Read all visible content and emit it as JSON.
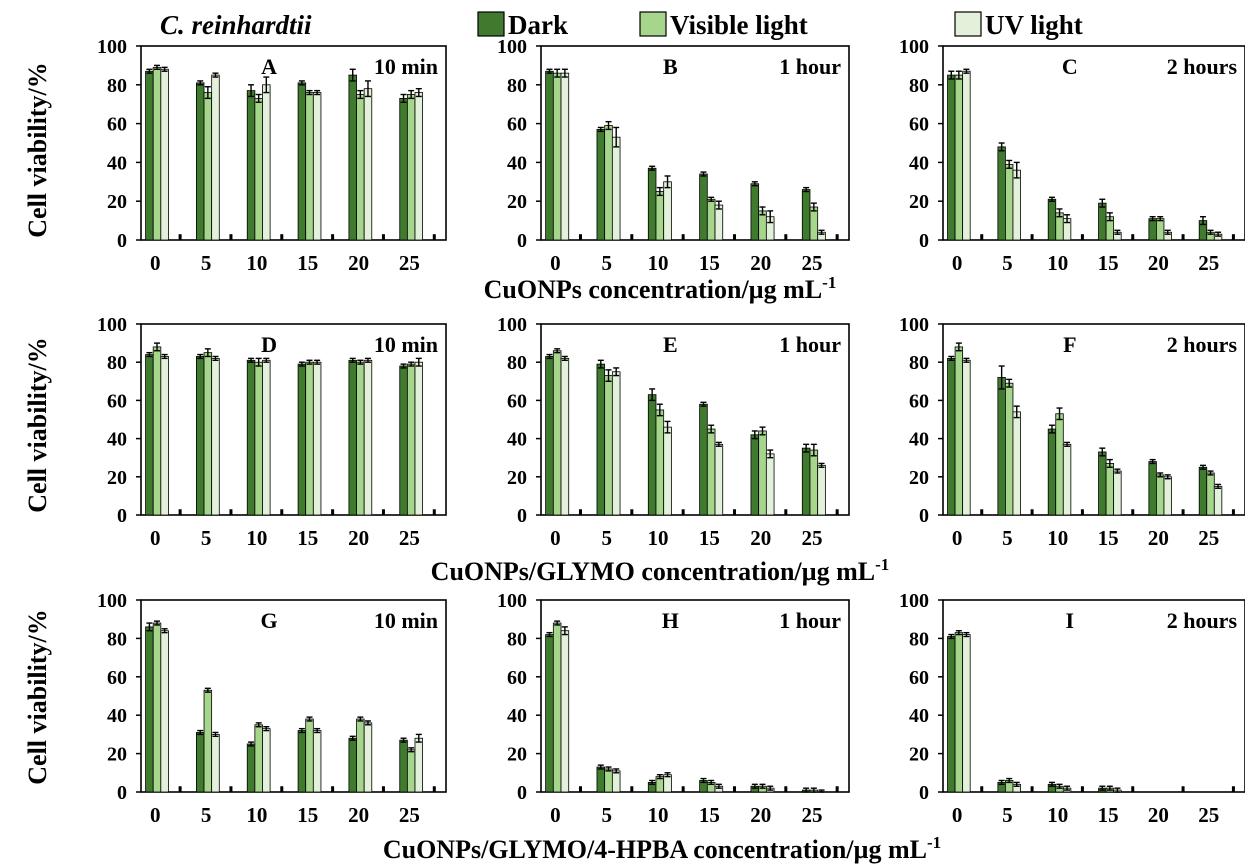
{
  "figure": {
    "species": "C. reinhardtii",
    "legend": [
      {
        "key": "dark",
        "label": "Dark",
        "color": "#3f7a2f"
      },
      {
        "key": "visible",
        "label": "Visible light",
        "color": "#a6d58c"
      },
      {
        "key": "uv",
        "label": "UV light",
        "color": "#e3f1da"
      }
    ],
    "ylabel": "Cell viability/%",
    "row_xlabels": [
      {
        "text": "CuONPs concentration/µg mL",
        "sup": "-1"
      },
      {
        "text": "CuONPs/GLYMO concentration/µg mL",
        "sup": "-1"
      },
      {
        "text": "CuONPs/GLYMO/4-HPBA concentration/µg mL",
        "sup": "-1"
      }
    ]
  },
  "chart_data": [
    {
      "panel": "A",
      "time": "10 min",
      "type": "bar",
      "categories": [
        "0",
        "5",
        "10",
        "15",
        "20",
        "25"
      ],
      "ylim": [
        0,
        100
      ],
      "yticks": [
        0,
        20,
        40,
        60,
        80,
        100
      ],
      "series": [
        {
          "name": "Dark",
          "values": [
            87,
            81,
            77,
            81,
            85,
            73
          ],
          "errors": [
            1,
            1,
            3,
            1,
            3,
            2
          ]
        },
        {
          "name": "Visible light",
          "values": [
            89,
            76,
            73,
            76,
            75,
            75
          ],
          "errors": [
            1,
            3,
            2,
            1,
            2,
            2
          ]
        },
        {
          "name": "UV light",
          "values": [
            88,
            85,
            80,
            76,
            78,
            76
          ],
          "errors": [
            1,
            1,
            4,
            1,
            4,
            2
          ]
        }
      ],
      "control_marks": [
        3,
        3,
        3,
        3,
        3,
        3
      ]
    },
    {
      "panel": "B",
      "time": "1 hour",
      "type": "bar",
      "categories": [
        "0",
        "5",
        "10",
        "15",
        "20",
        "25"
      ],
      "ylim": [
        0,
        100
      ],
      "yticks": [
        0,
        20,
        40,
        60,
        80,
        100
      ],
      "series": [
        {
          "name": "Dark",
          "values": [
            87,
            57,
            37,
            34,
            29,
            26
          ],
          "errors": [
            1,
            1,
            1,
            1,
            1,
            1
          ]
        },
        {
          "name": "Visible light",
          "values": [
            86,
            59,
            25,
            21,
            15,
            17
          ],
          "errors": [
            2,
            2,
            2,
            1,
            2,
            2
          ]
        },
        {
          "name": "UV light",
          "values": [
            86,
            53,
            30,
            18,
            12,
            4
          ],
          "errors": [
            2,
            5,
            3,
            2,
            3,
            1
          ]
        }
      ],
      "control_marks": [
        3,
        3,
        3,
        3,
        3,
        3
      ]
    },
    {
      "panel": "C",
      "time": "2 hours",
      "type": "bar",
      "categories": [
        "0",
        "5",
        "10",
        "15",
        "20",
        "25"
      ],
      "ylim": [
        0,
        100
      ],
      "yticks": [
        0,
        20,
        40,
        60,
        80,
        100
      ],
      "series": [
        {
          "name": "Dark",
          "values": [
            85,
            48,
            21,
            19,
            11,
            10
          ],
          "errors": [
            2,
            2,
            1,
            2,
            1,
            2
          ]
        },
        {
          "name": "Visible light",
          "values": [
            85,
            39,
            14,
            12,
            11,
            4
          ],
          "errors": [
            2,
            2,
            2,
            2,
            1,
            1
          ]
        },
        {
          "name": "UV light",
          "values": [
            87,
            36,
            11,
            4,
            4,
            3
          ],
          "errors": [
            1,
            4,
            2,
            1,
            1,
            1
          ]
        }
      ],
      "control_marks": [
        3,
        3,
        3,
        3,
        3,
        3
      ]
    },
    {
      "panel": "D",
      "time": "10 min",
      "type": "bar",
      "categories": [
        "0",
        "5",
        "10",
        "15",
        "20",
        "25"
      ],
      "ylim": [
        0,
        100
      ],
      "yticks": [
        0,
        20,
        40,
        60,
        80,
        100
      ],
      "series": [
        {
          "name": "Dark",
          "values": [
            84,
            83,
            81,
            79,
            81,
            78
          ],
          "errors": [
            1,
            1,
            1,
            1,
            1,
            1
          ]
        },
        {
          "name": "Visible light",
          "values": [
            88,
            85,
            80,
            80,
            80,
            79
          ],
          "errors": [
            2,
            2,
            2,
            1,
            1,
            1
          ]
        },
        {
          "name": "UV light",
          "values": [
            83,
            82,
            81,
            80,
            81,
            80
          ],
          "errors": [
            1,
            1,
            1,
            1,
            1,
            2
          ]
        }
      ],
      "control_marks": [
        3,
        3,
        3,
        3,
        3,
        3
      ]
    },
    {
      "panel": "E",
      "time": "1 hour",
      "type": "bar",
      "categories": [
        "0",
        "5",
        "10",
        "15",
        "20",
        "25"
      ],
      "ylim": [
        0,
        100
      ],
      "yticks": [
        0,
        20,
        40,
        60,
        80,
        100
      ],
      "series": [
        {
          "name": "Dark",
          "values": [
            83,
            79,
            63,
            58,
            42,
            35
          ],
          "errors": [
            1,
            2,
            3,
            1,
            2,
            2
          ]
        },
        {
          "name": "Visible light",
          "values": [
            86,
            73,
            55,
            45,
            44,
            34
          ],
          "errors": [
            1,
            3,
            3,
            2,
            2,
            3
          ]
        },
        {
          "name": "UV light",
          "values": [
            82,
            75,
            46,
            37,
            32,
            26
          ],
          "errors": [
            1,
            2,
            3,
            1,
            2,
            1
          ]
        }
      ],
      "control_marks": [
        3,
        3,
        3,
        3,
        3,
        3
      ]
    },
    {
      "panel": "F",
      "time": "2 hours",
      "type": "bar",
      "categories": [
        "0",
        "5",
        "10",
        "15",
        "20",
        "25"
      ],
      "ylim": [
        0,
        100
      ],
      "yticks": [
        0,
        20,
        40,
        60,
        80,
        100
      ],
      "series": [
        {
          "name": "Dark",
          "values": [
            82,
            72,
            45,
            33,
            28,
            25
          ],
          "errors": [
            1,
            6,
            2,
            2,
            1,
            1
          ]
        },
        {
          "name": "Visible light",
          "values": [
            88,
            69,
            53,
            27,
            21,
            22
          ],
          "errors": [
            2,
            2,
            3,
            2,
            1,
            1
          ]
        },
        {
          "name": "UV light",
          "values": [
            81,
            54,
            37,
            23,
            20,
            15
          ],
          "errors": [
            1,
            3,
            1,
            1,
            1,
            1
          ]
        }
      ],
      "control_marks": [
        3,
        3,
        3,
        3,
        3,
        3
      ]
    },
    {
      "panel": "G",
      "time": "10 min",
      "type": "bar",
      "categories": [
        "0",
        "5",
        "10",
        "15",
        "20",
        "25"
      ],
      "ylim": [
        0,
        100
      ],
      "yticks": [
        0,
        20,
        40,
        60,
        80,
        100
      ],
      "series": [
        {
          "name": "Dark",
          "values": [
            86,
            31,
            25,
            32,
            28,
            27
          ],
          "errors": [
            2,
            1,
            1,
            1,
            1,
            1
          ]
        },
        {
          "name": "Visible light",
          "values": [
            88,
            53,
            35,
            38,
            38,
            22
          ],
          "errors": [
            1,
            1,
            1,
            1,
            1,
            1
          ]
        },
        {
          "name": "UV light",
          "values": [
            84,
            30,
            33,
            32,
            36,
            28
          ],
          "errors": [
            1,
            1,
            1,
            1,
            1,
            2
          ]
        }
      ],
      "control_marks": [
        3,
        3,
        3,
        3,
        3,
        3
      ]
    },
    {
      "panel": "H",
      "time": "1 hour",
      "type": "bar",
      "categories": [
        "0",
        "5",
        "10",
        "15",
        "20",
        "25"
      ],
      "ylim": [
        0,
        100
      ],
      "yticks": [
        0,
        20,
        40,
        60,
        80,
        100
      ],
      "series": [
        {
          "name": "Dark",
          "values": [
            82,
            13,
            5,
            6,
            3,
            1
          ],
          "errors": [
            1,
            1,
            1,
            1,
            1,
            1
          ]
        },
        {
          "name": "Visible light",
          "values": [
            88,
            12,
            8,
            5,
            3,
            1
          ],
          "errors": [
            1,
            1,
            1,
            1,
            1,
            1
          ]
        },
        {
          "name": "UV light",
          "values": [
            84,
            11,
            9,
            3,
            2,
            0
          ],
          "errors": [
            2,
            1,
            1,
            1,
            1,
            1
          ]
        }
      ],
      "control_marks": [
        3,
        3,
        3,
        3,
        3,
        3
      ]
    },
    {
      "panel": "I",
      "time": "2 hours",
      "type": "bar",
      "categories": [
        "0",
        "5",
        "10",
        "15",
        "20",
        "25"
      ],
      "ylim": [
        0,
        100
      ],
      "yticks": [
        0,
        20,
        40,
        60,
        80,
        100
      ],
      "series": [
        {
          "name": "Dark",
          "values": [
            81,
            5,
            4,
            2,
            0,
            0
          ],
          "errors": [
            1,
            1,
            1,
            1,
            0,
            0
          ]
        },
        {
          "name": "Visible light",
          "values": [
            83,
            6,
            3,
            2,
            0,
            0
          ],
          "errors": [
            1,
            1,
            1,
            1,
            0,
            0
          ]
        },
        {
          "name": "UV light",
          "values": [
            82,
            4,
            2,
            1,
            0,
            0
          ],
          "errors": [
            1,
            1,
            1,
            1,
            0,
            0
          ]
        }
      ],
      "control_marks": [
        3,
        3,
        3,
        3,
        3,
        3
      ]
    }
  ]
}
